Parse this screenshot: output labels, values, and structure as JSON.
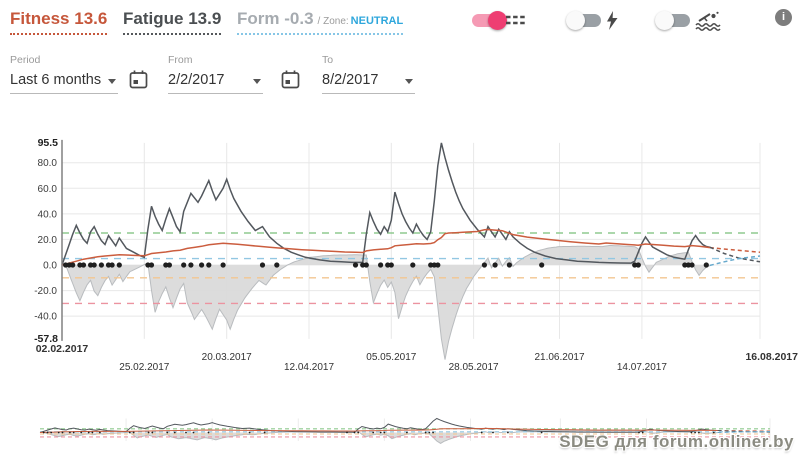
{
  "header": {
    "fitness": {
      "label": "Fitness",
      "value": "13.6"
    },
    "fatigue": {
      "label": "Fatigue",
      "value": "13.9"
    },
    "form": {
      "label": "Form",
      "value": "-0.3",
      "zone_prefix": "/ Zone:",
      "zone": "NEUTRAL"
    },
    "toggles": [
      {
        "name": "zones",
        "state": "on",
        "icon": "dashed-lines-icon"
      },
      {
        "name": "power",
        "state": "off",
        "icon": "lightning-icon"
      },
      {
        "name": "swim",
        "state": "off",
        "icon": "swimmer-icon"
      }
    ],
    "info_icon_label": "i",
    "accent_pink": "#ee3e72"
  },
  "filters": {
    "period": {
      "label": "Period",
      "value": "Last 6 months"
    },
    "from": {
      "label": "From",
      "value": "2/2/2017"
    },
    "to": {
      "label": "To",
      "value": "8/2/2017"
    }
  },
  "watermark": "SDEG для forum.onliner.by",
  "chart_data": {
    "type": "line",
    "grid": true,
    "legend": "none",
    "grid_color": "#e8e8e8",
    "axis_color": "#808080",
    "projection_start": 181,
    "x_axis": {
      "unit": "days-from-start",
      "range": [
        0,
        195
      ],
      "ticks": [
        {
          "label": "02.02.2017",
          "day": 0,
          "row": "high",
          "bold": true
        },
        {
          "label": "25.02.2017",
          "day": 23,
          "row": "low",
          "bold": false
        },
        {
          "label": "20.03.2017",
          "day": 46,
          "row": "high",
          "bold": false
        },
        {
          "label": "12.04.2017",
          "day": 69,
          "row": "low",
          "bold": false
        },
        {
          "label": "05.05.2017",
          "day": 92,
          "row": "high",
          "bold": false
        },
        {
          "label": "28.05.2017",
          "day": 115,
          "row": "low",
          "bold": false
        },
        {
          "label": "21.06.2017",
          "day": 139,
          "row": "high",
          "bold": false
        },
        {
          "label": "14.07.2017",
          "day": 162,
          "row": "low",
          "bold": false
        },
        {
          "label": "16.08.2017",
          "day": 195,
          "row": "high",
          "bold": true
        }
      ]
    },
    "y_axis": {
      "min": -57.8,
      "max": 95.5,
      "min_label": "-57.8",
      "max_label": "95.5",
      "ticks": [
        {
          "v": 80,
          "label": "80.0"
        },
        {
          "v": 60,
          "label": "60.0"
        },
        {
          "v": 40,
          "label": "40.0"
        },
        {
          "v": 20,
          "label": "20.0"
        },
        {
          "v": 0,
          "label": "0.0"
        },
        {
          "v": -20,
          "label": "-20.0"
        },
        {
          "v": -40,
          "label": "-40.0"
        }
      ]
    },
    "zone_lines": [
      {
        "name": "transition",
        "value": 25,
        "color": "#8fca8f"
      },
      {
        "name": "freshness",
        "value": 5,
        "color": "#92c7e2"
      },
      {
        "name": "optimal",
        "value": -10,
        "color": "#f3c690"
      },
      {
        "name": "overload",
        "value": -30,
        "color": "#ec93a0"
      }
    ],
    "series": [
      {
        "name": "fitness",
        "color": "#cb5d3e",
        "points": [
          [
            0,
            0
          ],
          [
            2,
            1.5
          ],
          [
            4,
            3
          ],
          [
            6,
            4.5
          ],
          [
            8,
            5.5
          ],
          [
            10,
            6.5
          ],
          [
            12,
            7
          ],
          [
            14,
            7.5
          ],
          [
            16,
            8
          ],
          [
            18,
            7.8
          ],
          [
            20,
            7.5
          ],
          [
            23,
            7.2
          ],
          [
            25,
            9
          ],
          [
            27,
            9.6
          ],
          [
            29,
            10.2
          ],
          [
            31,
            11
          ],
          [
            33,
            11.6
          ],
          [
            35,
            13
          ],
          [
            37,
            13.8
          ],
          [
            39,
            14.6
          ],
          [
            41,
            15.8
          ],
          [
            43,
            16.4
          ],
          [
            45,
            17
          ],
          [
            47,
            16.6
          ],
          [
            49,
            16.2
          ],
          [
            52,
            15.4
          ],
          [
            55,
            14.6
          ],
          [
            58,
            13.9
          ],
          [
            61,
            13.2
          ],
          [
            64,
            12.6
          ],
          [
            67,
            12
          ],
          [
            70,
            11.5
          ],
          [
            73,
            11
          ],
          [
            76,
            10.6
          ],
          [
            79,
            10.2
          ],
          [
            82,
            9.9
          ],
          [
            84,
            9.8
          ],
          [
            85,
            11
          ],
          [
            87,
            11.8
          ],
          [
            89,
            12.3
          ],
          [
            91,
            12.7
          ],
          [
            92,
            13.5
          ],
          [
            93,
            15
          ],
          [
            95,
            15.6
          ],
          [
            97,
            16
          ],
          [
            99,
            16.6
          ],
          [
            101,
            16.4
          ],
          [
            103,
            16.8
          ],
          [
            104,
            17.5
          ],
          [
            105,
            19.8
          ],
          [
            106,
            21.5
          ],
          [
            107,
            24.5
          ],
          [
            108,
            25
          ],
          [
            110,
            25.3
          ],
          [
            112,
            25.6
          ],
          [
            114,
            25.9
          ],
          [
            116,
            26.2
          ],
          [
            118,
            27.5
          ],
          [
            119,
            27.8
          ],
          [
            121,
            27.3
          ],
          [
            123,
            26.8
          ],
          [
            126,
            23.8
          ],
          [
            130,
            21.8
          ],
          [
            134,
            20.6
          ],
          [
            138,
            19.4
          ],
          [
            142,
            18.2
          ],
          [
            146,
            17.2
          ],
          [
            150,
            16.4
          ],
          [
            152,
            17.2
          ],
          [
            155,
            16.6
          ],
          [
            158,
            16
          ],
          [
            161,
            15.5
          ],
          [
            163,
            16.4
          ],
          [
            165,
            16
          ],
          [
            168,
            15.4
          ],
          [
            171,
            14.8
          ],
          [
            174,
            14.4
          ],
          [
            176,
            15.2
          ],
          [
            178,
            14.6
          ],
          [
            180,
            14
          ],
          [
            181,
            13.6
          ]
        ]
      },
      {
        "name": "fatigue",
        "color": "#53585e",
        "points": [
          [
            0,
            0
          ],
          [
            1,
            8
          ],
          [
            2,
            16
          ],
          [
            3,
            24
          ],
          [
            4,
            31
          ],
          [
            5,
            25
          ],
          [
            6,
            20
          ],
          [
            7,
            17
          ],
          [
            8,
            26
          ],
          [
            9,
            30
          ],
          [
            10,
            24
          ],
          [
            11,
            19
          ],
          [
            12,
            16
          ],
          [
            13,
            23
          ],
          [
            14,
            19
          ],
          [
            15,
            15
          ],
          [
            16,
            21
          ],
          [
            17,
            17
          ],
          [
            18,
            13
          ],
          [
            20,
            10
          ],
          [
            22,
            7
          ],
          [
            23,
            6
          ],
          [
            24,
            28
          ],
          [
            25,
            46
          ],
          [
            26,
            38
          ],
          [
            27,
            32
          ],
          [
            28,
            27
          ],
          [
            29,
            36
          ],
          [
            30,
            44
          ],
          [
            31,
            37
          ],
          [
            32,
            30
          ],
          [
            33,
            26
          ],
          [
            34,
            42
          ],
          [
            36,
            56
          ],
          [
            38,
            49
          ],
          [
            39,
            54
          ],
          [
            41,
            66
          ],
          [
            42,
            58
          ],
          [
            43,
            51
          ],
          [
            45,
            60
          ],
          [
            46,
            67
          ],
          [
            47,
            59
          ],
          [
            48,
            52
          ],
          [
            50,
            42
          ],
          [
            52,
            34
          ],
          [
            54,
            27
          ],
          [
            56,
            30
          ],
          [
            57,
            26
          ],
          [
            58,
            22
          ],
          [
            60,
            17
          ],
          [
            62,
            13
          ],
          [
            64,
            10
          ],
          [
            66,
            8
          ],
          [
            68,
            6
          ],
          [
            70,
            5
          ],
          [
            72,
            4
          ],
          [
            75,
            3
          ],
          [
            78,
            2.5
          ],
          [
            81,
            2
          ],
          [
            84,
            2
          ],
          [
            85,
            24
          ],
          [
            86,
            41
          ],
          [
            87,
            34
          ],
          [
            88,
            28
          ],
          [
            89,
            24
          ],
          [
            90,
            30
          ],
          [
            91,
            26
          ],
          [
            92,
            35
          ],
          [
            93,
            57
          ],
          [
            94,
            48
          ],
          [
            95,
            40
          ],
          [
            96,
            34
          ],
          [
            97,
            29
          ],
          [
            98,
            25
          ],
          [
            99,
            32
          ],
          [
            100,
            27
          ],
          [
            101,
            23
          ],
          [
            102,
            20
          ],
          [
            103,
            26
          ],
          [
            104,
            50
          ],
          [
            105,
            77.6
          ],
          [
            106,
            95.5
          ],
          [
            107,
            84
          ],
          [
            108,
            74
          ],
          [
            109,
            65
          ],
          [
            110,
            57
          ],
          [
            111,
            50
          ],
          [
            112,
            44
          ],
          [
            114,
            35
          ],
          [
            116,
            28
          ],
          [
            118,
            22
          ],
          [
            119,
            30
          ],
          [
            120,
            26
          ],
          [
            121,
            22
          ],
          [
            122,
            28
          ],
          [
            123,
            24
          ],
          [
            124,
            20
          ],
          [
            125,
            26
          ],
          [
            126,
            22
          ],
          [
            128,
            17
          ],
          [
            130,
            13
          ],
          [
            132,
            10
          ],
          [
            135,
            7
          ],
          [
            138,
            5
          ],
          [
            141,
            4
          ],
          [
            144,
            3
          ],
          [
            147,
            2.5
          ],
          [
            150,
            2
          ],
          [
            153,
            1.8
          ],
          [
            156,
            1.6
          ],
          [
            159,
            1.5
          ],
          [
            160,
            3
          ],
          [
            161,
            10
          ],
          [
            162,
            17
          ],
          [
            163,
            22
          ],
          [
            164,
            18
          ],
          [
            165,
            14
          ],
          [
            167,
            11
          ],
          [
            169,
            8
          ],
          [
            171,
            6
          ],
          [
            173,
            5
          ],
          [
            174,
            4.5
          ],
          [
            175,
            12
          ],
          [
            176,
            19
          ],
          [
            177,
            23
          ],
          [
            178,
            19
          ],
          [
            179,
            16
          ],
          [
            180,
            14.5
          ],
          [
            181,
            13.9
          ]
        ]
      },
      {
        "name": "form",
        "derived": "fitness(day-1) - fatigue(day-1)",
        "fill": "#d9d9d9",
        "stroke": "#b9bcbf"
      }
    ],
    "projections": [
      {
        "name": "fitness-projection",
        "color": "#cb5d3e",
        "points": [
          [
            181,
            13.6
          ],
          [
            186,
            12.2
          ],
          [
            190,
            11.2
          ],
          [
            195,
            10
          ]
        ]
      },
      {
        "name": "fatigue-projection",
        "color": "#53585e",
        "points": [
          [
            181,
            13.9
          ],
          [
            185,
            9
          ],
          [
            189,
            5.5
          ],
          [
            195,
            2.5
          ]
        ]
      },
      {
        "name": "form-projection",
        "color": "#67a9cc",
        "points": [
          [
            181,
            -0.3
          ],
          [
            185,
            2.5
          ],
          [
            189,
            5
          ],
          [
            195,
            7
          ]
        ]
      }
    ],
    "training_dots": {
      "color": "#1f1f1f",
      "days": [
        1,
        2,
        3,
        5,
        6,
        8,
        9,
        11,
        13,
        14,
        16,
        24,
        25,
        29,
        30,
        34,
        36,
        39,
        41,
        45,
        56,
        60,
        82,
        84,
        85,
        89,
        91,
        92,
        98,
        103,
        104,
        105,
        118,
        121,
        125,
        134,
        160,
        161,
        174,
        175,
        176,
        180
      ]
    }
  }
}
